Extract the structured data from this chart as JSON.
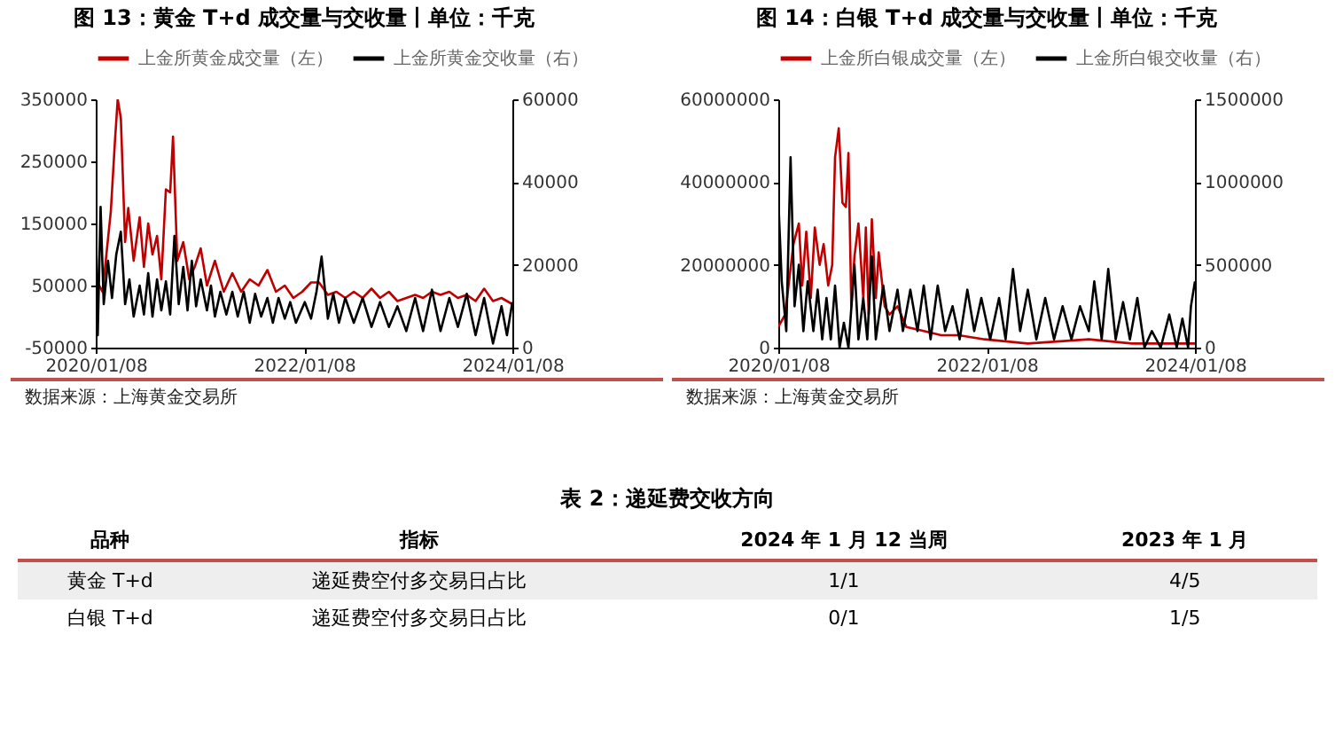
{
  "chart_data": [
    {
      "type": "line",
      "title": "图 13：黄金 T+d 成交量与交收量丨单位：千克",
      "legend": "top",
      "annotations": [
        "数据来源：上海黄金交易所"
      ],
      "xlim": [
        "2020-01-08",
        "2024-01-08"
      ],
      "xticks": [
        {
          "value": "2020-01-08",
          "label": "2020/01/08"
        },
        {
          "value": "2022-01-08",
          "label": "2022/01/08"
        },
        {
          "value": "2024-01-08",
          "label": "2024/01/08"
        }
      ],
      "ylim": [
        -50000,
        350000
      ],
      "yticks": [
        -50000,
        50000,
        150000,
        250000,
        350000
      ],
      "y2lim": [
        0,
        60000
      ],
      "y2ticks": [
        0,
        20000,
        40000,
        60000
      ],
      "series": [
        {
          "name": "上金所黄金成交量（左）",
          "color": "#c00000",
          "x": [
            "2020-01-08",
            "2020-02-01",
            "2020-03-01",
            "2020-03-15",
            "2020-03-25",
            "2020-04-05",
            "2020-04-20",
            "2020-05-01",
            "2020-05-20",
            "2020-06-10",
            "2020-06-25",
            "2020-07-10",
            "2020-07-25",
            "2020-08-10",
            "2020-08-25",
            "2020-09-10",
            "2020-09-25",
            "2020-10-05",
            "2020-10-20",
            "2020-11-10",
            "2020-12-01",
            "2020-12-20",
            "2021-01-10",
            "2021-02-01",
            "2021-03-01",
            "2021-04-01",
            "2021-05-01",
            "2021-06-01",
            "2021-07-01",
            "2021-08-01",
            "2021-09-01",
            "2021-10-01",
            "2021-11-01",
            "2021-12-01",
            "2022-01-01",
            "2022-02-01",
            "2022-03-01",
            "2022-04-01",
            "2022-05-01",
            "2022-06-01",
            "2022-07-01",
            "2022-08-01",
            "2022-09-01",
            "2022-10-01",
            "2022-11-01",
            "2022-12-01",
            "2023-01-01",
            "2023-02-01",
            "2023-03-01",
            "2023-04-01",
            "2023-05-01",
            "2023-06-01",
            "2023-07-01",
            "2023-08-01",
            "2023-09-01",
            "2023-10-01",
            "2023-11-01",
            "2023-12-01",
            "2024-01-08"
          ],
          "values": [
            60000,
            40000,
            170000,
            280000,
            350000,
            320000,
            120000,
            175000,
            90000,
            160000,
            80000,
            150000,
            100000,
            130000,
            60000,
            205000,
            200000,
            290000,
            90000,
            120000,
            60000,
            80000,
            110000,
            50000,
            90000,
            40000,
            70000,
            40000,
            60000,
            50000,
            75000,
            40000,
            50000,
            30000,
            40000,
            55000,
            55000,
            35000,
            40000,
            30000,
            40000,
            30000,
            45000,
            30000,
            40000,
            25000,
            30000,
            35000,
            30000,
            40000,
            35000,
            40000,
            30000,
            35000,
            25000,
            45000,
            25000,
            30000,
            20000
          ]
        },
        {
          "name": "上金所黄金交收量（右）",
          "color": "#000000",
          "axis": "y2",
          "x": [
            "2020-01-08",
            "2020-01-15",
            "2020-01-25",
            "2020-02-05",
            "2020-02-20",
            "2020-03-05",
            "2020-03-20",
            "2020-04-05",
            "2020-04-20",
            "2020-05-05",
            "2020-05-20",
            "2020-06-10",
            "2020-06-25",
            "2020-07-10",
            "2020-07-25",
            "2020-08-10",
            "2020-08-25",
            "2020-09-10",
            "2020-09-25",
            "2020-10-10",
            "2020-10-25",
            "2020-11-10",
            "2020-11-25",
            "2020-12-10",
            "2020-12-25",
            "2021-01-10",
            "2021-02-01",
            "2021-02-15",
            "2021-03-01",
            "2021-03-20",
            "2021-04-10",
            "2021-05-01",
            "2021-05-20",
            "2021-06-10",
            "2021-07-01",
            "2021-07-20",
            "2021-08-10",
            "2021-09-01",
            "2021-09-20",
            "2021-10-10",
            "2021-11-01",
            "2021-11-20",
            "2021-12-10",
            "2022-01-10",
            "2022-02-01",
            "2022-02-20",
            "2022-03-10",
            "2022-04-01",
            "2022-04-20",
            "2022-05-10",
            "2022-06-01",
            "2022-07-01",
            "2022-08-01",
            "2022-09-01",
            "2022-10-01",
            "2022-11-01",
            "2022-12-01",
            "2023-01-01",
            "2023-02-01",
            "2023-03-01",
            "2023-04-01",
            "2023-05-01",
            "2023-06-01",
            "2023-07-01",
            "2023-08-01",
            "2023-09-01",
            "2023-10-01",
            "2023-11-01",
            "2023-12-01",
            "2023-12-20",
            "2024-01-08"
          ],
          "values": [
            34000,
            3000,
            34000,
            10500,
            21000,
            12000,
            22500,
            28000,
            10500,
            16500,
            7500,
            15000,
            8000,
            18000,
            7500,
            16500,
            9000,
            16000,
            8000,
            27000,
            10500,
            19500,
            9000,
            21000,
            10000,
            16500,
            9000,
            15000,
            7500,
            13500,
            8000,
            13500,
            7500,
            13500,
            6000,
            13000,
            7500,
            12000,
            6000,
            12000,
            7000,
            11000,
            6000,
            11000,
            7000,
            13500,
            22000,
            7000,
            13000,
            6000,
            12000,
            6000,
            12000,
            5000,
            11000,
            5000,
            10000,
            4000,
            12000,
            4000,
            14000,
            4000,
            12000,
            5000,
            13000,
            3000,
            12000,
            1000,
            10000,
            3000,
            11000
          ]
        }
      ]
    },
    {
      "type": "line",
      "title": "图 14：白银 T+d 成交量与交收量丨单位：千克",
      "legend": "top",
      "annotations": [
        "数据来源：上海黄金交易所"
      ],
      "xlim": [
        "2020-01-08",
        "2024-01-08"
      ],
      "xticks": [
        {
          "value": "2020-01-08",
          "label": "2020/01/08"
        },
        {
          "value": "2022-01-08",
          "label": "2022/01/08"
        },
        {
          "value": "2024-01-08",
          "label": "2024/01/08"
        }
      ],
      "ylim": [
        0,
        60000000
      ],
      "yticks": [
        0,
        20000000,
        40000000,
        60000000
      ],
      "y2lim": [
        0,
        1500000
      ],
      "y2ticks": [
        0,
        500000,
        1000000,
        1500000
      ],
      "series": [
        {
          "name": "上金所白银成交量（左）",
          "color": "#c00000",
          "x": [
            "2020-01-08",
            "2020-02-01",
            "2020-03-01",
            "2020-03-20",
            "2020-04-01",
            "2020-04-15",
            "2020-05-01",
            "2020-05-15",
            "2020-06-01",
            "2020-06-15",
            "2020-07-01",
            "2020-07-15",
            "2020-07-25",
            "2020-08-07",
            "2020-08-20",
            "2020-09-01",
            "2020-09-10",
            "2020-09-20",
            "2020-10-01",
            "2020-10-15",
            "2020-11-01",
            "2020-11-10",
            "2020-11-20",
            "2020-12-01",
            "2020-12-15",
            "2020-12-25",
            "2021-01-15",
            "2021-02-01",
            "2021-03-01",
            "2021-04-01",
            "2021-06-01",
            "2021-08-01",
            "2021-10-01",
            "2022-01-01",
            "2022-06-01",
            "2023-01-01",
            "2023-06-01",
            "2024-01-08"
          ],
          "values": [
            5000000,
            8000000,
            25000000,
            30000000,
            15000000,
            28000000,
            12000000,
            29000000,
            20000000,
            25000000,
            15000000,
            20000000,
            46000000,
            53000000,
            35000000,
            34000000,
            47000000,
            10000000,
            22000000,
            30000000,
            12000000,
            29000000,
            8000000,
            31000000,
            12000000,
            23000000,
            10000000,
            8000000,
            10000000,
            5000000,
            4000000,
            3000000,
            3000000,
            2000000,
            1000000,
            2000000,
            1000000,
            1000000
          ]
        },
        {
          "name": "上金所白银交收量（右）",
          "color": "#000000",
          "axis": "y2",
          "x": [
            "2020-01-08",
            "2020-01-20",
            "2020-02-05",
            "2020-02-20",
            "2020-03-05",
            "2020-03-20",
            "2020-04-05",
            "2020-04-20",
            "2020-05-10",
            "2020-05-25",
            "2020-06-10",
            "2020-06-25",
            "2020-07-10",
            "2020-07-25",
            "2020-08-10",
            "2020-08-25",
            "2020-09-10",
            "2020-10-01",
            "2020-10-15",
            "2020-11-01",
            "2020-11-15",
            "2020-12-01",
            "2020-12-15",
            "2021-01-10",
            "2021-02-01",
            "2021-03-01",
            "2021-03-20",
            "2021-04-15",
            "2021-05-10",
            "2021-06-01",
            "2021-06-25",
            "2021-07-20",
            "2021-08-15",
            "2021-09-10",
            "2021-10-05",
            "2021-11-01",
            "2021-11-25",
            "2021-12-20",
            "2022-01-20",
            "2022-02-20",
            "2022-03-15",
            "2022-04-10",
            "2022-05-05",
            "2022-06-01",
            "2022-07-01",
            "2022-08-01",
            "2022-09-01",
            "2022-10-01",
            "2022-11-01",
            "2022-12-01",
            "2023-01-01",
            "2023-01-20",
            "2023-02-15",
            "2023-03-10",
            "2023-04-05",
            "2023-05-01",
            "2023-05-25",
            "2023-06-20",
            "2023-07-15",
            "2023-08-10",
            "2023-09-10",
            "2023-10-10",
            "2023-11-05",
            "2023-11-25",
            "2023-12-15",
            "2023-12-25",
            "2024-01-08"
          ],
          "values": [
            900000,
            400000,
            100000,
            1150000,
            250000,
            500000,
            100000,
            400000,
            100000,
            350000,
            50000,
            300000,
            50000,
            375000,
            0,
            150000,
            0,
            500000,
            50000,
            300000,
            50000,
            550000,
            50000,
            375000,
            100000,
            350000,
            100000,
            350000,
            100000,
            375000,
            50000,
            375000,
            100000,
            250000,
            50000,
            350000,
            100000,
            300000,
            50000,
            300000,
            50000,
            475000,
            100000,
            350000,
            50000,
            300000,
            50000,
            250000,
            50000,
            250000,
            100000,
            400000,
            50000,
            475000,
            50000,
            275000,
            50000,
            300000,
            0,
            100000,
            0,
            200000,
            0,
            175000,
            0,
            250000,
            400000
          ]
        }
      ]
    },
    {
      "type": "other",
      "title": "表 2：递延费交收方向",
      "annotations": [
        "品种",
        "指标",
        "2024 年 1 月 12 当周",
        "2023 年 1 月",
        "黄金 T+d",
        "递延费空付多交易日占比",
        "1/1",
        "4/5",
        "白银 T+d",
        "递延费空付多交易日占比",
        "0/1",
        "1/5"
      ]
    }
  ]
}
